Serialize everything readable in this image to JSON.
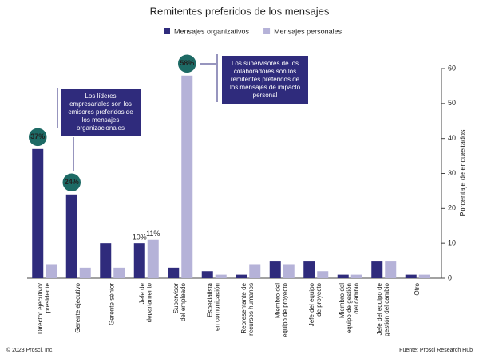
{
  "chart_data": {
    "type": "bar",
    "title": "Remitentes preferidos de los mensajes",
    "categories": [
      "Director ejecutivo/\npresidente",
      "Gerente ejecutivo",
      "Gerente sénior",
      "Jefe de\ndepartamento",
      "Supervisor\ndel empleado",
      "Especialista\nen comunicación",
      "Representante de\nrecursos humanos",
      "Miembro del\nequipo de proyecto",
      "Jefe del equipo\nde proyecto",
      "Miembro del\nequipo de gestión\ndel cambio",
      "Jefe del equipo de\ngestión del cambio",
      "Otro"
    ],
    "series": [
      {
        "name": "Mensajes organizativos",
        "color": "#2f2b7c",
        "values": [
          37,
          24,
          10,
          10,
          3,
          2,
          1,
          5,
          5,
          1,
          5,
          1
        ],
        "value_labels": [
          "37%",
          "24%",
          null,
          "10%",
          null,
          null,
          null,
          null,
          null,
          null,
          null,
          null
        ]
      },
      {
        "name": "Mensajes personales",
        "color": "#b5b2d8",
        "values": [
          4,
          3,
          3,
          11,
          58,
          1,
          4,
          4,
          2,
          1,
          5,
          1
        ],
        "value_labels": [
          null,
          null,
          null,
          "11%",
          "58%",
          null,
          null,
          null,
          null,
          null,
          null,
          null
        ]
      }
    ],
    "ylabel": "Porcentaje de encuestados",
    "ylim": [
      0,
      60
    ],
    "yticks": [
      0,
      10,
      20,
      30,
      40,
      50,
      60
    ],
    "highlight_color": "#1d6a65",
    "annotations": [
      "Los líderes empresariales son los emisores preferidos de los mensajes organizacionales",
      "Los supervisores de los colaboradores son los remitentes preferidos de los mensajes de impacto personal"
    ],
    "footer_left": "© 2023 Prosci, Inc.",
    "footer_right": "Fuente: Prosci Research Hub"
  }
}
